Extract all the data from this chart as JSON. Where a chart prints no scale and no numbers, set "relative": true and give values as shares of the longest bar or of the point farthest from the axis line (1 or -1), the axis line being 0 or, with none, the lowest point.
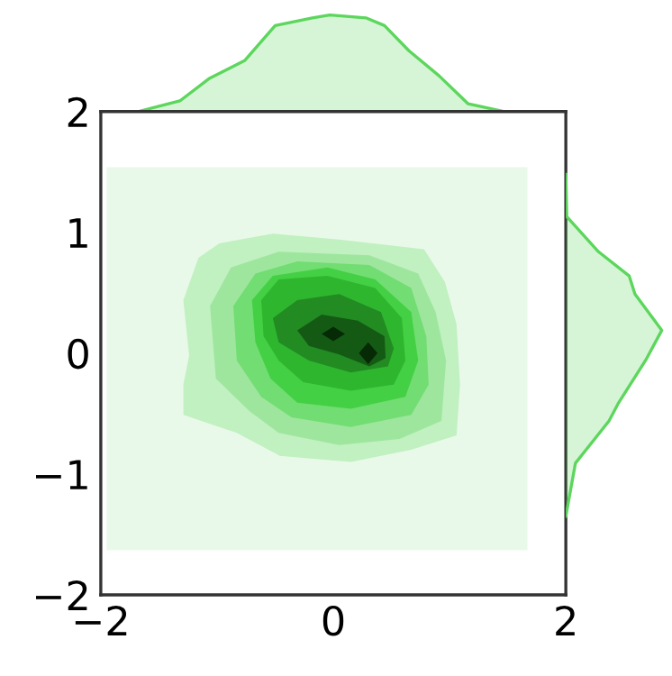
{
  "chart_data": [
    {
      "type": "area",
      "relative": true,
      "xlim": [
        -2,
        2
      ],
      "x": [
        -1.68,
        -1.32,
        -1.07,
        -0.76,
        -0.5,
        -0.18,
        -0.03,
        0.28,
        0.44,
        0.65,
        0.91,
        1.16,
        1.47
      ],
      "series": [
        {
          "color": "#5cd65c",
          "values": [
            0,
            0.11,
            0.34,
            0.53,
            0.89,
            0.97,
            1.0,
            0.97,
            0.89,
            0.63,
            0.37,
            0.08,
            0
          ]
        }
      ]
    },
    {
      "type": "area",
      "legend": false,
      "grid": false,
      "xlim": [
        -2,
        2
      ],
      "ylim": [
        -2,
        2
      ],
      "xticks": [
        {
          "value": -2,
          "label": "−2"
        },
        0,
        2
      ],
      "yticks": [
        {
          "value": -2,
          "label": "−2"
        },
        {
          "value": -1,
          "label": "−1"
        },
        0,
        1,
        2
      ],
      "series": [
        {
          "color": "#e9f9e9",
          "x": [
            -1.95,
            1.67,
            1.67,
            -1.95
          ],
          "values": [
            1.54,
            1.54,
            -1.63,
            -1.63
          ]
        },
        {
          "color": "#c1f0c1",
          "x": [
            -1.29,
            -1.16,
            -0.98,
            -0.52,
            0.05,
            0.78,
            0.96,
            1.06,
            1.09,
            1.06,
            0.67,
            0.15,
            -0.46,
            -0.83,
            -1.29,
            -1.29,
            -1.24
          ],
          "values": [
            0.44,
            0.79,
            0.91,
            0.99,
            0.94,
            0.86,
            0.59,
            0.24,
            -0.26,
            -0.68,
            -0.8,
            -0.9,
            -0.85,
            -0.66,
            -0.51,
            -0.26,
            -0.02
          ]
        },
        {
          "color": "#9ee69e",
          "x": [
            -1.06,
            -0.88,
            -0.47,
            0.31,
            0.73,
            0.88,
            0.97,
            0.93,
            0.57,
            0.05,
            -0.47,
            -0.72,
            -1.01
          ],
          "values": [
            0.39,
            0.71,
            0.84,
            0.81,
            0.66,
            0.34,
            -0.06,
            -0.56,
            -0.71,
            -0.76,
            -0.66,
            -0.48,
            -0.21
          ]
        },
        {
          "color": "#72dd72",
          "x": [
            -0.86,
            -0.67,
            -0.31,
            0.31,
            0.67,
            0.8,
            0.82,
            0.67,
            0.15,
            -0.36,
            -0.62,
            -0.83
          ],
          "values": [
            0.39,
            0.66,
            0.76,
            0.73,
            0.54,
            0.14,
            -0.26,
            -0.51,
            -0.61,
            -0.53,
            -0.36,
            -0.06
          ]
        },
        {
          "color": "#44d044",
          "x": [
            -0.7,
            -0.52,
            -0.05,
            0.36,
            0.67,
            0.73,
            0.62,
            0.15,
            -0.31,
            -0.54,
            -0.67
          ],
          "values": [
            0.44,
            0.64,
            0.71,
            0.61,
            0.34,
            -0.06,
            -0.36,
            -0.46,
            -0.41,
            -0.21,
            0.09
          ]
        },
        {
          "color": "#2fb62f",
          "x": [
            -0.62,
            -0.47,
            -0.05,
            0.36,
            0.59,
            0.62,
            0.52,
            0.15,
            -0.26,
            -0.47,
            -0.6
          ],
          "values": [
            0.44,
            0.61,
            0.64,
            0.54,
            0.29,
            -0.06,
            -0.26,
            -0.31,
            -0.24,
            -0.06,
            0.14
          ]
        },
        {
          "color": "#228b22",
          "x": [
            -0.52,
            -0.31,
            0.05,
            0.41,
            0.52,
            0.47,
            0.15,
            -0.21,
            -0.47
          ],
          "values": [
            0.29,
            0.44,
            0.49,
            0.34,
            0.04,
            -0.11,
            -0.16,
            -0.06,
            0.09
          ]
        },
        {
          "color": "#145a14",
          "x": [
            -0.31,
            -0.1,
            0.21,
            0.44,
            0.45,
            0.31,
            0.05,
            -0.21
          ],
          "values": [
            0.19,
            0.32,
            0.27,
            0.14,
            -0.04,
            -0.11,
            -0.01,
            0.06
          ]
        },
        {
          "color": "#062a06",
          "x": [
            -0.1,
            0.0,
            0.1,
            0.0
          ],
          "values": [
            0.16,
            0.22,
            0.16,
            0.1
          ]
        },
        {
          "color": "#062a06",
          "x": [
            0.22,
            0.3,
            0.38,
            0.3
          ],
          "values": [
            0.0,
            0.09,
            0.0,
            -0.09
          ]
        }
      ]
    },
    {
      "type": "area",
      "relative": true,
      "orientation": "horizontal",
      "ylim": [
        -2,
        2
      ],
      "x": [
        1.48,
        1.13,
        0.84,
        0.64,
        0.49,
        0.19,
        -0.06,
        -0.41,
        -0.56,
        -0.91,
        -1.35
      ],
      "series": [
        {
          "color": "#5cd65c",
          "values": [
            0,
            0.01,
            0.34,
            0.66,
            0.72,
            1.0,
            0.83,
            0.55,
            0.45,
            0.1,
            0
          ]
        }
      ]
    }
  ]
}
